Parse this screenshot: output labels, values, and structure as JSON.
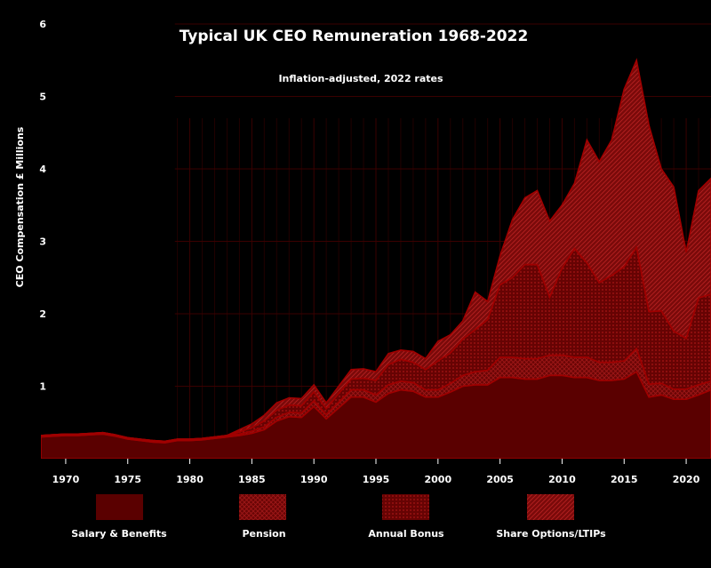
{
  "chart_data": {
    "type": "area",
    "title": "Typical UK CEO Remuneration 1968-2022",
    "subtitle": "Inflation-adjusted, 2022 rates",
    "ylabel": "CEO Compensation  £ Millions",
    "xlabel": "",
    "xlim": [
      1968,
      2022
    ],
    "ylim": [
      0,
      6
    ],
    "stacked": true,
    "grid": "dark red gridlines from 1979 onward",
    "legend_position": "bottom",
    "x_ticks": [
      1970,
      1975,
      1980,
      1985,
      1990,
      1995,
      2000,
      2005,
      2010,
      2015,
      2020
    ],
    "y_ticks": [
      1,
      2,
      3,
      4,
      5,
      6
    ],
    "x": [
      1968,
      1969,
      1970,
      1971,
      1972,
      1973,
      1974,
      1975,
      1976,
      1977,
      1978,
      1979,
      1980,
      1981,
      1982,
      1983,
      1984,
      1985,
      1986,
      1987,
      1988,
      1989,
      1990,
      1991,
      1992,
      1993,
      1994,
      1995,
      1996,
      1997,
      1998,
      1999,
      2000,
      2001,
      2002,
      2003,
      2004,
      2005,
      2006,
      2007,
      2008,
      2009,
      2010,
      2011,
      2012,
      2013,
      2014,
      2015,
      2016,
      2017,
      2018,
      2019,
      2020,
      2021,
      2022
    ],
    "series": [
      {
        "name": "Salary & Benefits",
        "color": "#5a0000",
        "pattern": "solid",
        "values": [
          0.3,
          0.31,
          0.32,
          0.32,
          0.33,
          0.34,
          0.31,
          0.27,
          0.25,
          0.23,
          0.22,
          0.25,
          0.25,
          0.26,
          0.28,
          0.3,
          0.32,
          0.35,
          0.4,
          0.52,
          0.58,
          0.57,
          0.72,
          0.55,
          0.7,
          0.85,
          0.85,
          0.78,
          0.9,
          0.95,
          0.93,
          0.85,
          0.85,
          0.92,
          1.0,
          1.02,
          1.02,
          1.12,
          1.12,
          1.1,
          1.1,
          1.15,
          1.15,
          1.12,
          1.12,
          1.08,
          1.08,
          1.1,
          1.2,
          0.85,
          0.88,
          0.82,
          0.82,
          0.88,
          0.95
        ]
      },
      {
        "name": "Pension",
        "color": "#7a0808",
        "pattern": "crosshatch",
        "values": [
          0.02,
          0.02,
          0.02,
          0.02,
          0.02,
          0.02,
          0.02,
          0.02,
          0.02,
          0.02,
          0.02,
          0.02,
          0.02,
          0.02,
          0.02,
          0.02,
          0.02,
          0.03,
          0.04,
          0.05,
          0.06,
          0.06,
          0.08,
          0.06,
          0.08,
          0.1,
          0.1,
          0.1,
          0.12,
          0.12,
          0.12,
          0.1,
          0.1,
          0.12,
          0.15,
          0.18,
          0.2,
          0.28,
          0.28,
          0.28,
          0.28,
          0.28,
          0.28,
          0.28,
          0.28,
          0.25,
          0.25,
          0.25,
          0.32,
          0.18,
          0.16,
          0.14,
          0.14,
          0.14,
          0.12
        ]
      },
      {
        "name": "Annual Bonus",
        "color": "#6e0404",
        "pattern": "dots",
        "values": [
          0.0,
          0.0,
          0.0,
          0.0,
          0.0,
          0.0,
          0.0,
          0.0,
          0.0,
          0.0,
          0.0,
          0.0,
          0.0,
          0.0,
          0.0,
          0.0,
          0.03,
          0.05,
          0.08,
          0.1,
          0.1,
          0.1,
          0.12,
          0.08,
          0.12,
          0.15,
          0.16,
          0.2,
          0.28,
          0.3,
          0.28,
          0.28,
          0.4,
          0.42,
          0.5,
          0.58,
          0.7,
          1.0,
          1.1,
          1.3,
          1.3,
          0.8,
          1.2,
          1.5,
          1.3,
          1.1,
          1.2,
          1.3,
          1.4,
          1.0,
          1.0,
          0.8,
          0.7,
          1.2,
          1.2
        ]
      },
      {
        "name": "Share Options/LTIPs",
        "color": "#8a1010",
        "pattern": "diagonal",
        "values": [
          0.0,
          0.0,
          0.0,
          0.0,
          0.0,
          0.0,
          0.0,
          0.0,
          0.0,
          0.0,
          0.0,
          0.0,
          0.0,
          0.0,
          0.0,
          0.0,
          0.03,
          0.05,
          0.08,
          0.1,
          0.1,
          0.1,
          0.1,
          0.08,
          0.1,
          0.13,
          0.13,
          0.12,
          0.15,
          0.13,
          0.15,
          0.15,
          0.27,
          0.25,
          0.25,
          0.52,
          0.25,
          0.4,
          0.8,
          0.92,
          1.02,
          1.05,
          0.87,
          0.9,
          1.7,
          1.67,
          1.87,
          2.45,
          2.58,
          2.57,
          1.96,
          1.99,
          1.19,
          1.48,
          1.6
        ]
      }
    ]
  }
}
